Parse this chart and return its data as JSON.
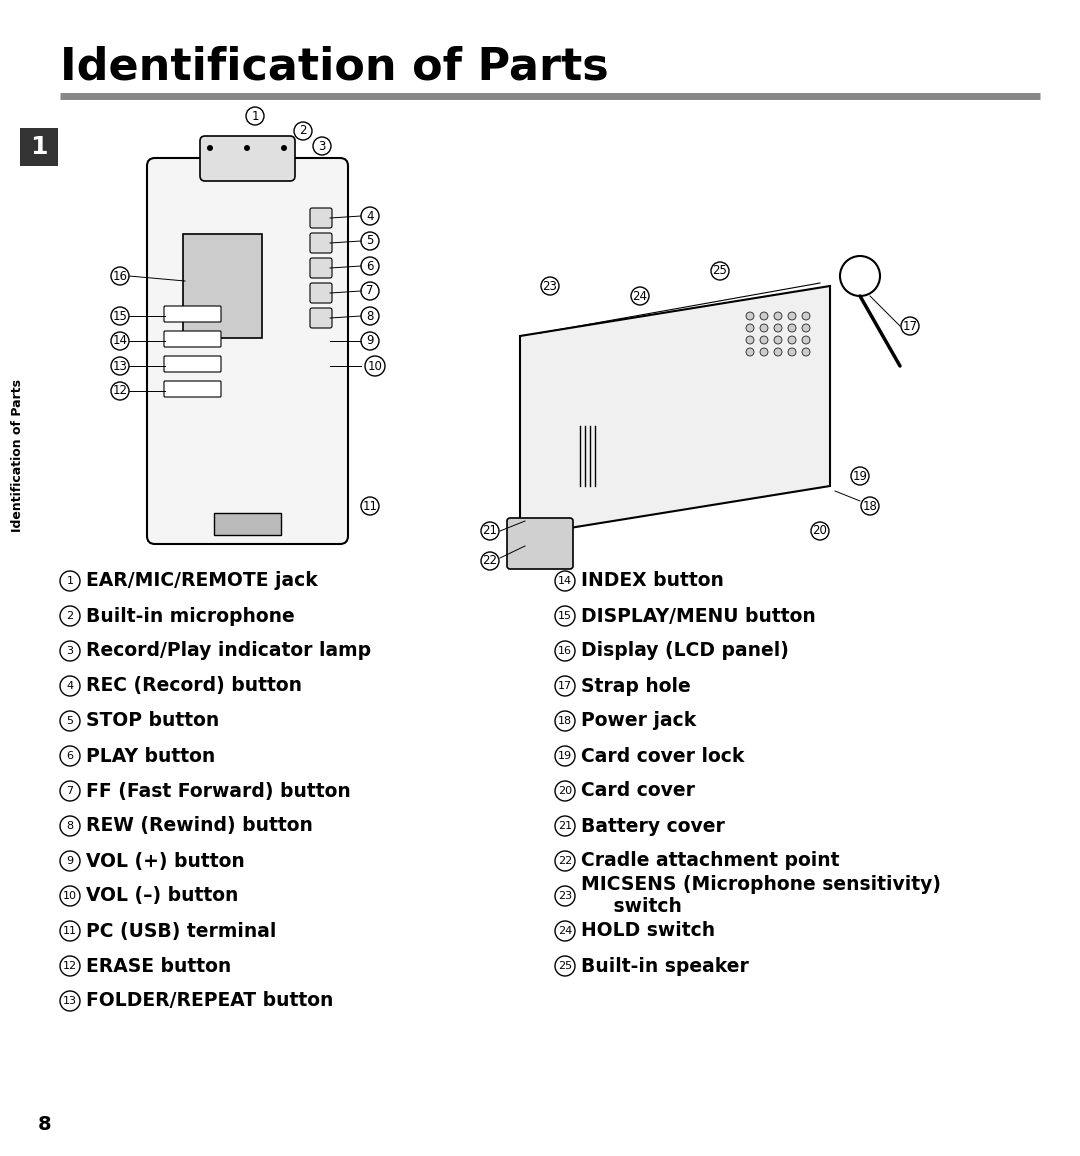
{
  "title": "Identification of Parts",
  "background_color": "#ffffff",
  "title_fontsize": 32,
  "title_font": "Arial",
  "title_bold": true,
  "separator_color": "#888888",
  "section_number": "1",
  "section_bg": "#333333",
  "section_text_color": "#ffffff",
  "sidebar_text": "Identification of Parts",
  "page_number": "8",
  "left_items": [
    {
      "num": "1",
      "text": "EAR/MIC/REMOTE jack"
    },
    {
      "num": "2",
      "text": "Built-in microphone"
    },
    {
      "num": "3",
      "text": "Record/Play indicator lamp"
    },
    {
      "num": "4",
      "text": "REC (Record) button"
    },
    {
      "num": "5",
      "text": "STOP button"
    },
    {
      "num": "6",
      "text": "PLAY button"
    },
    {
      "num": "7",
      "text": "FF (Fast Forward) button"
    },
    {
      "num": "8",
      "text": "REW (Rewind) button"
    },
    {
      "num": "9",
      "text": "VOL (+) button"
    },
    {
      "num": "10",
      "text": "VOL (–) button"
    },
    {
      "num": "11",
      "text": "PC (USB) terminal"
    },
    {
      "num": "12",
      "text": "ERASE button"
    },
    {
      "num": "13",
      "text": "FOLDER/REPEAT button"
    }
  ],
  "right_items": [
    {
      "num": "14",
      "text": "INDEX button"
    },
    {
      "num": "15",
      "text": "DISPLAY/MENU button"
    },
    {
      "num": "16",
      "text": "Display (LCD panel)"
    },
    {
      "num": "17",
      "text": "Strap hole"
    },
    {
      "num": "18",
      "text": "Power jack"
    },
    {
      "num": "19",
      "text": "Card cover lock"
    },
    {
      "num": "20",
      "text": "Card cover"
    },
    {
      "num": "21",
      "text": "Battery cover"
    },
    {
      "num": "22",
      "text": "Cradle attachment point"
    },
    {
      "num": "23",
      "text": "MICSENS (Microphone sensitivity)\n     switch"
    },
    {
      "num": "24",
      "text": "HOLD switch"
    },
    {
      "num": "25",
      "text": "Built-in speaker"
    }
  ]
}
